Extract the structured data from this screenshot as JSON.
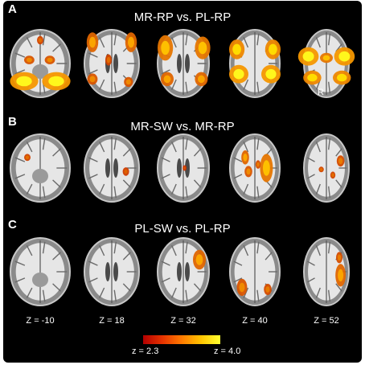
{
  "panels": [
    {
      "letter": "A",
      "title": "MR-RP vs. PL-RP",
      "orientation_label": "R",
      "slices": [
        {
          "blobs": [
            [
              0.25,
              0.75,
              0.22,
              0.13,
              0.9
            ],
            [
              0.75,
              0.75,
              0.22,
              0.13,
              0.9
            ],
            [
              0.33,
              0.45,
              0.08,
              0.06,
              0.5
            ],
            [
              0.65,
              0.45,
              0.08,
              0.06,
              0.5
            ],
            [
              0.5,
              0.17,
              0.05,
              0.06,
              0.4
            ]
          ]
        },
        {
          "blobs": [
            [
              0.2,
              0.2,
              0.09,
              0.14,
              0.6
            ],
            [
              0.8,
              0.2,
              0.09,
              0.14,
              0.6
            ],
            [
              0.45,
              0.45,
              0.05,
              0.08,
              0.4
            ],
            [
              0.2,
              0.72,
              0.08,
              0.08,
              0.5
            ],
            [
              0.76,
              0.76,
              0.07,
              0.07,
              0.5
            ]
          ]
        },
        {
          "blobs": [
            [
              0.22,
              0.28,
              0.12,
              0.18,
              0.7
            ],
            [
              0.8,
              0.28,
              0.12,
              0.16,
              0.7
            ],
            [
              0.25,
              0.72,
              0.1,
              0.1,
              0.6
            ],
            [
              0.78,
              0.72,
              0.1,
              0.1,
              0.6
            ]
          ]
        },
        {
          "blobs": [
            [
              0.22,
              0.3,
              0.12,
              0.14,
              0.8
            ],
            [
              0.78,
              0.3,
              0.12,
              0.14,
              0.8
            ],
            [
              0.25,
              0.65,
              0.15,
              0.13,
              0.9
            ],
            [
              0.75,
              0.65,
              0.15,
              0.13,
              0.9
            ]
          ]
        },
        {
          "blobs": [
            [
              0.22,
              0.4,
              0.16,
              0.13,
              0.9
            ],
            [
              0.78,
              0.4,
              0.16,
              0.13,
              0.9
            ],
            [
              0.5,
              0.42,
              0.1,
              0.07,
              0.7
            ],
            [
              0.28,
              0.7,
              0.14,
              0.1,
              0.8
            ],
            [
              0.74,
              0.7,
              0.14,
              0.1,
              0.8
            ]
          ]
        }
      ]
    },
    {
      "letter": "B",
      "title": "MR-SW vs. MR-RP",
      "slices": [
        {
          "blobs": [
            [
              0.3,
              0.35,
              0.05,
              0.05,
              0.4
            ]
          ]
        },
        {
          "blobs": [
            [
              0.72,
              0.55,
              0.05,
              0.06,
              0.35
            ]
          ]
        },
        {
          "blobs": [
            [
              0.52,
              0.5,
              0.03,
              0.04,
              0.3
            ]
          ]
        },
        {
          "blobs": [
            [
              0.35,
              0.35,
              0.06,
              0.1,
              0.6
            ],
            [
              0.68,
              0.5,
              0.1,
              0.2,
              0.7
            ],
            [
              0.4,
              0.55,
              0.06,
              0.08,
              0.5
            ],
            [
              0.55,
              0.45,
              0.04,
              0.06,
              0.45
            ]
          ]
        },
        {
          "blobs": [
            [
              0.42,
              0.52,
              0.04,
              0.04,
              0.4
            ],
            [
              0.72,
              0.4,
              0.06,
              0.08,
              0.45
            ],
            [
              0.6,
              0.6,
              0.04,
              0.05,
              0.4
            ]
          ]
        }
      ]
    },
    {
      "letter": "C",
      "title": "PL-SW vs. PL-RP",
      "slices": [
        {
          "blobs": []
        },
        {
          "blobs": []
        },
        {
          "blobs": [
            [
              0.75,
              0.33,
              0.1,
              0.14,
              0.6
            ]
          ]
        },
        {
          "blobs": [
            [
              0.3,
              0.72,
              0.08,
              0.12,
              0.5
            ],
            [
              0.7,
              0.75,
              0.06,
              0.08,
              0.45
            ]
          ]
        },
        {
          "blobs": [
            [
              0.72,
              0.55,
              0.08,
              0.16,
              0.6
            ],
            [
              0.7,
              0.3,
              0.05,
              0.08,
              0.45
            ]
          ]
        }
      ]
    }
  ],
  "z_labels": [
    "Z = -10",
    "Z = 18",
    "Z = 32",
    "Z = 40",
    "Z = 52"
  ],
  "colorbar": {
    "min_label": "z = 2.3",
    "max_label": "z = 4.0",
    "min": 2.3,
    "max": 4.0,
    "colors": [
      "#b40000",
      "#ffff30"
    ]
  }
}
